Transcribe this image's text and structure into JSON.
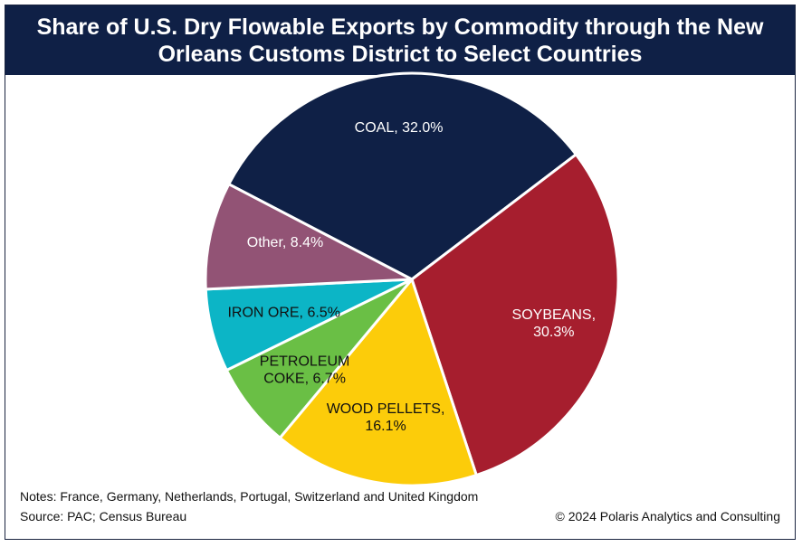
{
  "title": "Share of U.S. Dry Flowable Exports by Commodity through the New Orleans Customs District to Select Countries",
  "chart_data": {
    "type": "pie",
    "slices": [
      {
        "name": "COAL",
        "value": 32.0,
        "label_lines": [
          "COAL, 32.0%"
        ],
        "color": "#0f2046",
        "text_color": "#ffffff"
      },
      {
        "name": "SOYBEANS",
        "value": 30.3,
        "label_lines": [
          "SOYBEANS,",
          "30.3%"
        ],
        "color": "#a61e2e",
        "text_color": "#ffffff"
      },
      {
        "name": "WOOD PELLETS",
        "value": 16.1,
        "label_lines": [
          "WOOD PELLETS,",
          "16.1%"
        ],
        "color": "#fccc0a",
        "text_color": "#111111"
      },
      {
        "name": "PETROLEUM COKE",
        "value": 6.7,
        "label_lines": [
          "PETROLEUM",
          "COKE, 6.7%"
        ],
        "color": "#6abf45",
        "text_color": "#111111"
      },
      {
        "name": "IRON ORE",
        "value": 6.5,
        "label_lines": [
          "IRON ORE, 6.5%"
        ],
        "color": "#0cb5c6",
        "text_color": "#111111"
      },
      {
        "name": "Other",
        "value": 8.4,
        "label_lines": [
          "Other, 8.4%"
        ],
        "color": "#925375",
        "text_color": "#ffffff"
      }
    ],
    "start_at": "top, clockwise, COAL slice centered at top-left",
    "slice_border_color": "#ffffff"
  },
  "notes": "Notes: France, Germany, Netherlands, Portugal, Switzerland and United Kingdom",
  "source": "Source: PAC; Census Bureau",
  "copyright": "© 2024 Polaris Analytics and Consulting"
}
